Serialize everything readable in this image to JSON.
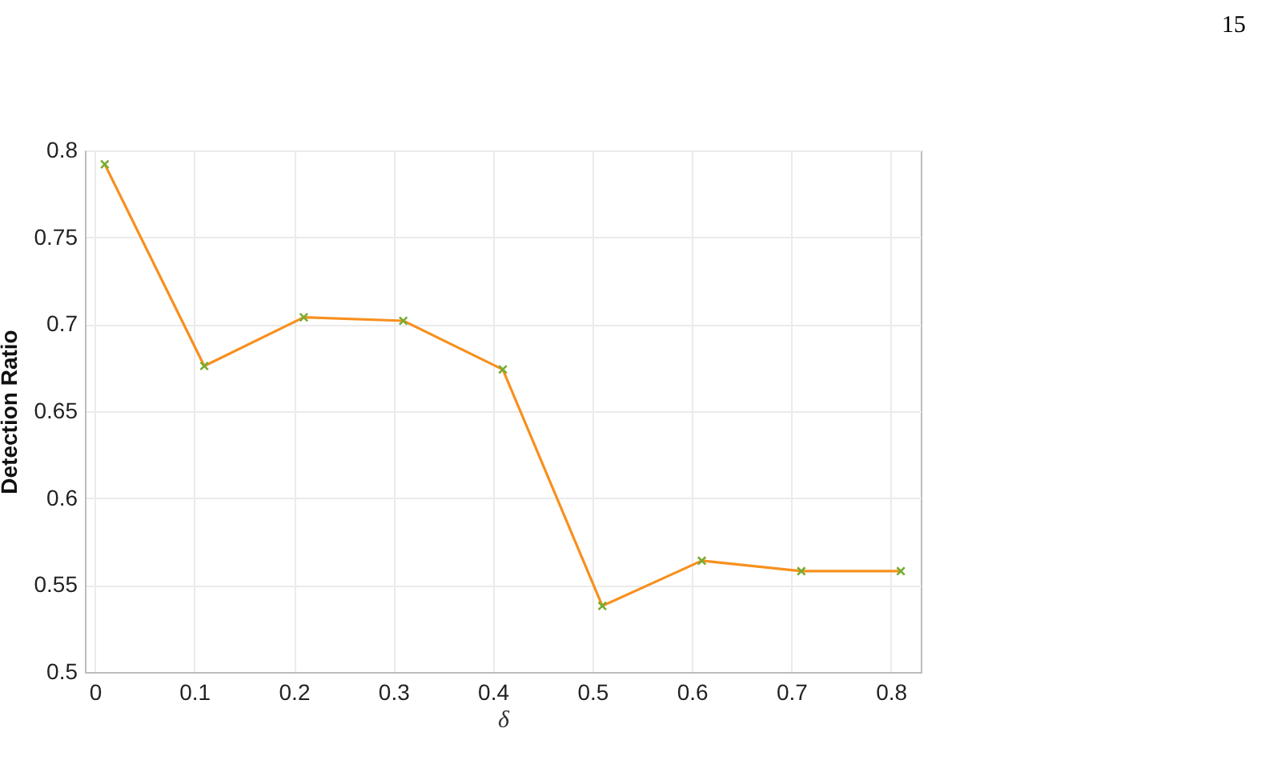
{
  "chart_data": {
    "type": "line",
    "xlabel": "δ",
    "ylabel": "Detection Ratio",
    "annotations": [
      "15"
    ],
    "x": [
      0.01,
      0.11,
      0.21,
      0.31,
      0.41,
      0.51,
      0.61,
      0.71,
      0.81
    ],
    "series": [
      {
        "color": "#f7901e",
        "marker": "none",
        "values": [
          0.792,
          0.676,
          0.704,
          0.702,
          0.674,
          0.538,
          0.564,
          0.558,
          0.558
        ]
      },
      {
        "type": "scatter",
        "color": "#77ac30",
        "marker": "cross",
        "values": [
          0.792,
          0.676,
          0.704,
          0.702,
          0.674,
          0.538,
          0.564,
          0.558,
          0.558
        ]
      }
    ],
    "xlim": [
      -0.01,
      0.83
    ],
    "xticks": [
      0,
      0.1,
      0.2,
      0.3,
      0.4,
      0.5,
      0.6,
      0.7,
      0.8
    ],
    "ylim": [
      0.5,
      0.8
    ],
    "yticks": [
      0.5,
      0.55,
      0.6,
      0.65,
      0.7,
      0.75,
      0.8
    ],
    "grid": true
  }
}
